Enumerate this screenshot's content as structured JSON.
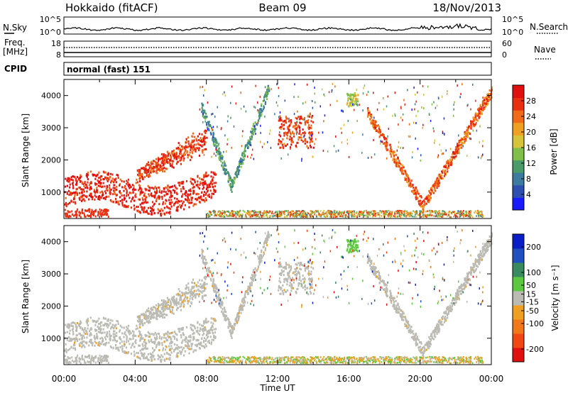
{
  "header": {
    "station": "Hokkaido (fitACF)",
    "beam": "Beam 09",
    "date": "18/Nov/2013"
  },
  "noise_panel": {
    "left_label": "N.Sky",
    "right_label": "N.Search",
    "left_ticks": [
      "10^5",
      "10^0"
    ],
    "right_ticks": [
      "10^5",
      "10^0"
    ]
  },
  "freq_panel": {
    "left_label_1": "Freq.",
    "left_label_2": "[MHz]",
    "right_label": "Nave",
    "left_ticks": [
      "18",
      "8"
    ],
    "right_ticks": [
      "60",
      "0"
    ]
  },
  "cpid_panel": {
    "label": "CPID",
    "text": "normal (fast) 151"
  },
  "x_axis": {
    "title": "Time UT",
    "ticks": [
      "00:00",
      "04:00",
      "08:00",
      "12:00",
      "16:00",
      "20:00",
      "00:00"
    ]
  },
  "colors": {
    "power": [
      "#1a1aff",
      "#2e4fb0",
      "#3d7aa0",
      "#4a9a6a",
      "#7fbf4a",
      "#d8c43a",
      "#f0a020",
      "#f06a18",
      "#e83010",
      "#e01010"
    ],
    "velocity": [
      "#0a1ec8",
      "#2050c0",
      "#3a8a60",
      "#5cc840",
      "#bbbbb3",
      "#f0a020",
      "#f07818",
      "#f04812",
      "#e01010"
    ]
  },
  "chart_data": [
    {
      "type": "heatmap",
      "title": "Power",
      "xlabel": "",
      "ylabel": "Slant Range [km]",
      "x_ticks": [
        "00:00",
        "04:00",
        "08:00",
        "12:00",
        "16:00",
        "20:00",
        "00:00"
      ],
      "y_ticks": [
        1000,
        2000,
        3000,
        4000
      ],
      "xlim_hours": [
        0,
        24
      ],
      "ylim": [
        180,
        4500
      ],
      "colorbar": {
        "label": "Power [dB]",
        "ticks": [
          4,
          8,
          12,
          16,
          20,
          24,
          28
        ],
        "range": [
          0,
          32
        ]
      },
      "features": [
        {
          "region": "near-range band",
          "t_start": "00:00",
          "t_end": "08:30",
          "range_km": [
            600,
            1500
          ],
          "power_db": 30
        },
        {
          "region": "oblique streaks",
          "t_start": "04:00",
          "t_end": "08:00",
          "range_km": [
            1500,
            3000
          ],
          "power_db": 28
        },
        {
          "region": "arc",
          "t_start": "07:40",
          "t_end": "11:30",
          "range_km": [
            1200,
            4300
          ],
          "power_db": 10
        },
        {
          "region": "patch",
          "t_start": "12:00",
          "t_end": "14:00",
          "range_km": [
            2400,
            3400
          ],
          "power_db": 28
        },
        {
          "region": "patch",
          "t_start": "15:50",
          "t_end": "16:30",
          "range_km": [
            3700,
            4100
          ],
          "power_db": 16
        },
        {
          "region": "arc",
          "t_start": "17:00",
          "t_end": "24:00",
          "range_km": [
            600,
            4200
          ],
          "power_db": 26
        }
      ]
    },
    {
      "type": "heatmap",
      "title": "Velocity",
      "xlabel": "Time UT",
      "ylabel": "Slant Range [km]",
      "x_ticks": [
        "00:00",
        "04:00",
        "08:00",
        "12:00",
        "16:00",
        "20:00",
        "00:00"
      ],
      "y_ticks": [
        1000,
        2000,
        3000,
        4000
      ],
      "xlim_hours": [
        0,
        24
      ],
      "ylim": [
        180,
        4500
      ],
      "colorbar": {
        "label": "Velocity [m s⁻¹]",
        "ticks": [
          200,
          100,
          50,
          15,
          -15,
          -50,
          -100,
          -200
        ],
        "range": [
          -250,
          250
        ]
      },
      "features": [
        {
          "region": "near-range band",
          "t_start": "00:00",
          "t_end": "08:30",
          "range_km": [
            600,
            1500
          ],
          "velocity": 0
        },
        {
          "region": "oblique streaks",
          "t_start": "04:00",
          "t_end": "08:00",
          "range_km": [
            1500,
            3000
          ],
          "velocity": 0
        },
        {
          "region": "arc",
          "t_start": "07:40",
          "t_end": "11:30",
          "range_km": [
            1200,
            4300
          ],
          "velocity": 0
        },
        {
          "region": "patch",
          "t_start": "12:00",
          "t_end": "14:00",
          "range_km": [
            2400,
            3400
          ],
          "velocity": 0
        },
        {
          "region": "arc",
          "t_start": "17:00",
          "t_end": "24:00",
          "range_km": [
            600,
            4200
          ],
          "velocity": 30
        }
      ]
    }
  ]
}
